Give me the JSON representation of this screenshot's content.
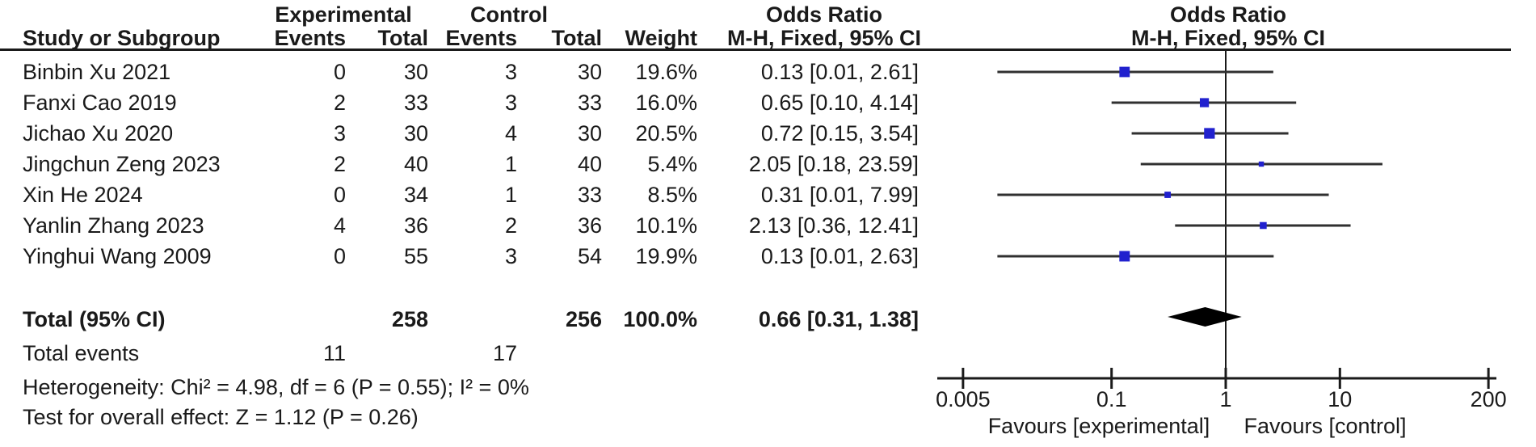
{
  "headers": {
    "group_experimental": "Experimental",
    "group_control": "Control",
    "odds_ratio_left": "Odds Ratio",
    "odds_ratio_right": "Odds Ratio",
    "study": "Study or Subgroup",
    "events": "Events",
    "total": "Total",
    "weight": "Weight",
    "mh_fixed_left": "M-H, Fixed, 95% CI",
    "mh_fixed_right": "M-H, Fixed, 95% CI"
  },
  "table": {
    "rows": [
      {
        "study": "Binbin Xu 2021",
        "exp_events": "0",
        "exp_total": "30",
        "ctrl_events": "3",
        "ctrl_total": "30",
        "weight": "19.6%",
        "or_ci": "0.13 [0.01, 2.61]"
      },
      {
        "study": "Fanxi Cao 2019",
        "exp_events": "2",
        "exp_total": "33",
        "ctrl_events": "3",
        "ctrl_total": "33",
        "weight": "16.0%",
        "or_ci": "0.65 [0.10, 4.14]"
      },
      {
        "study": "Jichao Xu 2020",
        "exp_events": "3",
        "exp_total": "30",
        "ctrl_events": "4",
        "ctrl_total": "30",
        "weight": "20.5%",
        "or_ci": "0.72 [0.15, 3.54]"
      },
      {
        "study": "Jingchun Zeng 2023",
        "exp_events": "2",
        "exp_total": "40",
        "ctrl_events": "1",
        "ctrl_total": "40",
        "weight": "5.4%",
        "or_ci": "2.05 [0.18, 23.59]"
      },
      {
        "study": "Xin He 2024",
        "exp_events": "0",
        "exp_total": "34",
        "ctrl_events": "1",
        "ctrl_total": "33",
        "weight": "8.5%",
        "or_ci": "0.31 [0.01, 7.99]"
      },
      {
        "study": "Yanlin Zhang 2023",
        "exp_events": "4",
        "exp_total": "36",
        "ctrl_events": "2",
        "ctrl_total": "36",
        "weight": "10.1%",
        "or_ci": "2.13 [0.36, 12.41]"
      },
      {
        "study": "Yinghui Wang 2009",
        "exp_events": "0",
        "exp_total": "55",
        "ctrl_events": "3",
        "ctrl_total": "54",
        "weight": "19.9%",
        "or_ci": "0.13 [0.01, 2.63]"
      }
    ]
  },
  "total_row": {
    "label": "Total (95% CI)",
    "exp_total": "258",
    "ctrl_total": "256",
    "weight": "100.0%",
    "or_ci": "0.66 [0.31, 1.38]"
  },
  "total_events": {
    "label": "Total events",
    "exp": "11",
    "ctrl": "17"
  },
  "stats": {
    "heterogeneity": "Heterogeneity: Chi² = 4.98, df = 6 (P = 0.55); I² = 0%",
    "overall_effect": "Test for overall effect: Z = 1.12 (P = 0.26)"
  },
  "axis": {
    "tick_labels": [
      "0.005",
      "0.1",
      "1",
      "10",
      "200"
    ],
    "favours_left": "Favours [experimental]",
    "favours_right": "Favours [control]"
  },
  "colors": {
    "marker_blue": "#2121CE",
    "diamond_black": "#000000",
    "ci_line": "#303030",
    "axis_black": "#1a1a1a"
  },
  "chart_data": {
    "type": "forest",
    "effect_measure": "Odds Ratio, M-H, Fixed, 95% CI",
    "x_scale": "log",
    "x_ticks": [
      0.005,
      0.1,
      1,
      10,
      200
    ],
    "x_range": [
      0.005,
      200
    ],
    "null_line": 1,
    "studies": [
      {
        "name": "Binbin Xu 2021",
        "or": 0.13,
        "ci_low": 0.01,
        "ci_high": 2.61,
        "weight_pct": 19.6
      },
      {
        "name": "Fanxi Cao 2019",
        "or": 0.65,
        "ci_low": 0.1,
        "ci_high": 4.14,
        "weight_pct": 16.0
      },
      {
        "name": "Jichao Xu 2020",
        "or": 0.72,
        "ci_low": 0.15,
        "ci_high": 3.54,
        "weight_pct": 20.5
      },
      {
        "name": "Jingchun Zeng 2023",
        "or": 2.05,
        "ci_low": 0.18,
        "ci_high": 23.59,
        "weight_pct": 5.4
      },
      {
        "name": "Xin He 2024",
        "or": 0.31,
        "ci_low": 0.01,
        "ci_high": 7.99,
        "weight_pct": 8.5
      },
      {
        "name": "Yanlin Zhang 2023",
        "or": 2.13,
        "ci_low": 0.36,
        "ci_high": 12.41,
        "weight_pct": 10.1
      },
      {
        "name": "Yinghui Wang 2009",
        "or": 0.13,
        "ci_low": 0.01,
        "ci_high": 2.63,
        "weight_pct": 19.9
      }
    ],
    "total": {
      "label": "Total (95% CI)",
      "or": 0.66,
      "ci_low": 0.31,
      "ci_high": 1.38,
      "weight_pct": 100.0
    },
    "total_events": {
      "experimental": 11,
      "control": 17
    },
    "heterogeneity": {
      "chi2": 4.98,
      "df": 6,
      "p": 0.55,
      "i2_pct": 0
    },
    "overall_effect": {
      "z": 1.12,
      "p": 0.26
    }
  }
}
